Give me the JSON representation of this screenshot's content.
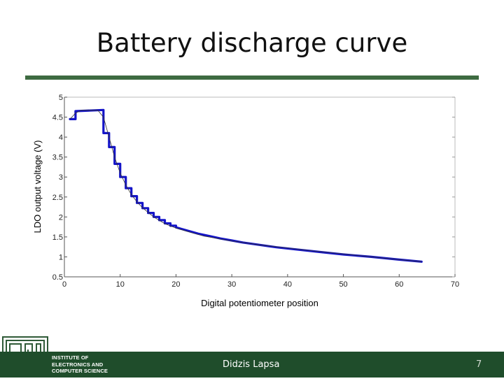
{
  "slide": {
    "title": "Battery discharge curve",
    "author": "Didzis Lapsa",
    "page_number": "7",
    "institute_lines": [
      "INSTITUTE OF",
      "ELECTRONICS AND",
      "COMPUTER SCIENCE"
    ],
    "colors": {
      "accent": "#3e6b41",
      "footer": "#1f4d2b",
      "curve": "#1414c8"
    }
  },
  "chart_data": {
    "type": "line",
    "title": "",
    "xlabel": "Digital potentiometer position",
    "ylabel": "LDO output voltage (V)",
    "xlim": [
      0,
      70
    ],
    "ylim": [
      0.5,
      5
    ],
    "x_ticks": [
      "0",
      "10",
      "20",
      "30",
      "40",
      "50",
      "60",
      "70"
    ],
    "y_ticks": [
      "0.5",
      "1",
      "1.5",
      "2",
      "2.5",
      "3",
      "3.5",
      "4",
      "4.5",
      "5"
    ],
    "grid": false,
    "series": [
      {
        "style": "measured-step",
        "x": [
          1,
          2,
          2,
          7,
          7,
          8,
          8,
          9,
          9,
          10,
          10,
          11,
          11,
          12,
          12,
          13,
          13,
          14,
          14,
          15,
          15,
          16,
          16,
          17,
          17,
          18,
          18,
          19,
          19,
          20,
          20,
          21,
          22,
          24,
          26,
          28,
          30,
          32,
          35,
          38,
          42,
          46,
          50,
          55,
          60,
          64
        ],
        "y": [
          4.45,
          4.45,
          4.65,
          4.68,
          4.1,
          4.1,
          3.75,
          3.75,
          3.33,
          3.33,
          3.0,
          3.0,
          2.72,
          2.72,
          2.52,
          2.52,
          2.35,
          2.35,
          2.22,
          2.22,
          2.1,
          2.1,
          2.0,
          2.0,
          1.92,
          1.92,
          1.84,
          1.84,
          1.78,
          1.78,
          1.74,
          1.7,
          1.66,
          1.58,
          1.52,
          1.46,
          1.41,
          1.36,
          1.3,
          1.24,
          1.18,
          1.12,
          1.06,
          1.0,
          0.93,
          0.88
        ]
      },
      {
        "style": "reference-thin",
        "x": [
          1,
          2,
          3,
          4,
          5,
          6,
          7,
          8,
          9,
          10,
          11,
          12,
          13,
          14,
          16,
          18,
          20,
          25,
          30,
          35,
          40,
          45,
          50,
          55,
          60,
          64
        ],
        "y": [
          4.45,
          4.6,
          4.67,
          4.67,
          4.67,
          4.67,
          4.5,
          4.0,
          3.5,
          3.1,
          2.8,
          2.56,
          2.38,
          2.23,
          2.0,
          1.83,
          1.72,
          1.52,
          1.4,
          1.3,
          1.22,
          1.14,
          1.07,
          1.0,
          0.93,
          0.88
        ]
      }
    ]
  }
}
